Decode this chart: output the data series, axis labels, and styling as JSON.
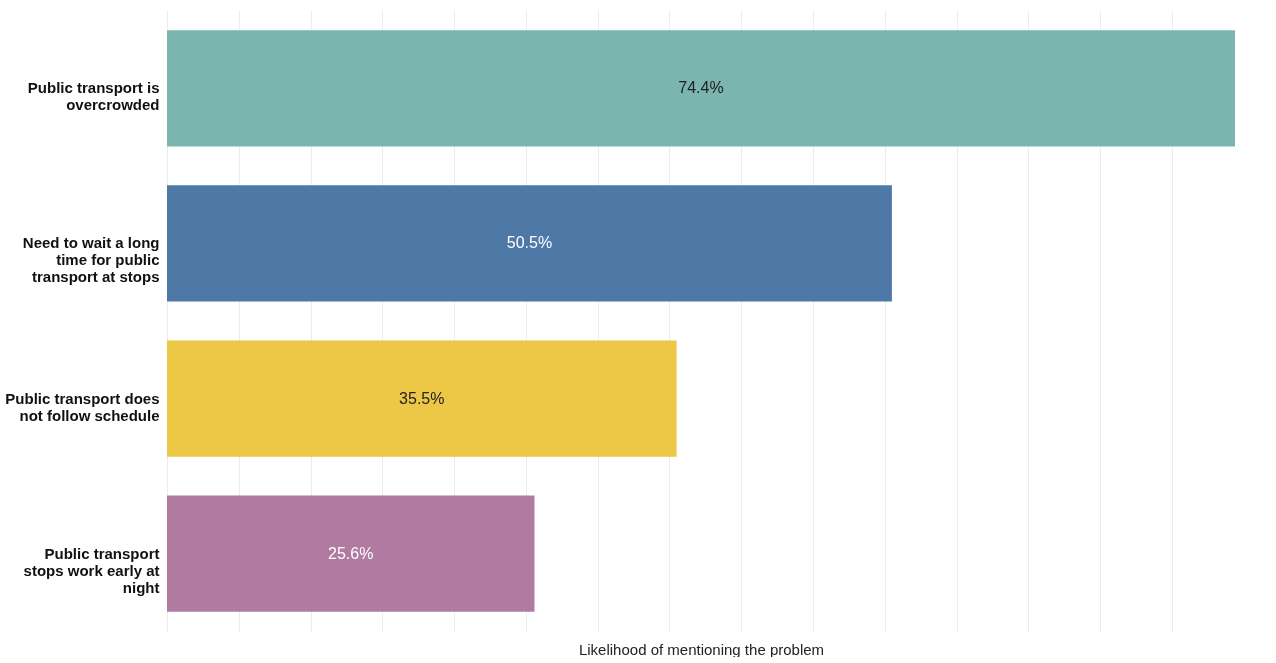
{
  "chart_data": {
    "type": "bar",
    "orientation": "horizontal",
    "xlabel": "Likelihood of mentioning the problem",
    "categories": [
      "Public transport is overcrowded",
      "Need to wait a long time for public transport at stops",
      "Public transport does not follow schedule",
      "Public transport stops work early at night"
    ],
    "values": [
      74.4,
      50.5,
      35.5,
      25.6
    ],
    "value_labels": [
      "74.4%",
      "50.5%",
      "35.5%",
      "25.6%"
    ],
    "colors": [
      "#7ab5b0",
      "#4e79a7",
      "#ecc846",
      "#b07aa1"
    ],
    "xlim": [
      0,
      74.4
    ],
    "grid": "x",
    "tick_labels": "y"
  }
}
